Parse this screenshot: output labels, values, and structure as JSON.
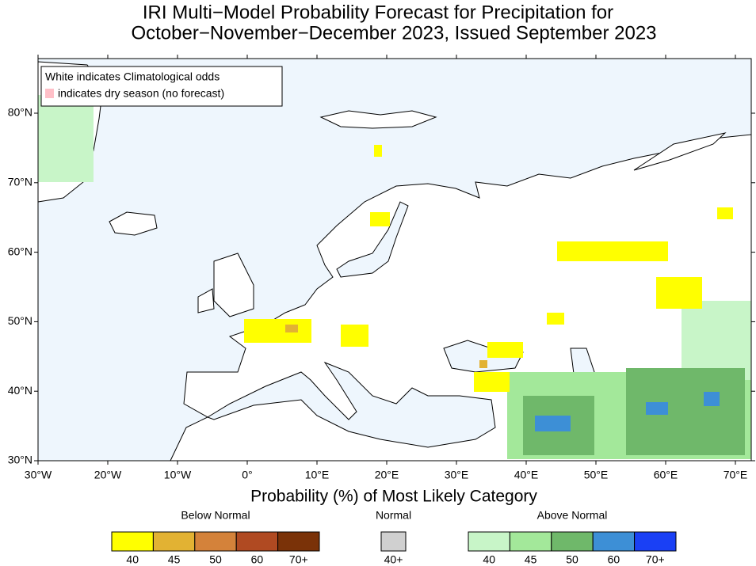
{
  "title": [
    "IRI Multi−Model Probability Forecast for Precipitation for",
    "October−November−December 2023, Issued September 2023"
  ],
  "notice": {
    "climatology": "White indicates Climatological odds",
    "dry_season": "indicates dry season (no forecast)",
    "dry_color": "#ffc0c8"
  },
  "map": {
    "x_labels": [
      "30°W",
      "20°W",
      "10°W",
      "0°",
      "10°E",
      "20°E",
      "30°E",
      "40°E",
      "50°E",
      "60°E",
      "70°E"
    ],
    "y_labels": [
      "30°N",
      "40°N",
      "50°N",
      "60°N",
      "70°N",
      "80°N"
    ]
  },
  "colorbar": {
    "title": "Probability (%) of Most Likely Category",
    "groups": [
      {
        "name": "Below Normal",
        "colors": [
          "#ffff00",
          "#e2b233",
          "#d4823a",
          "#b04a22",
          "#7a3208"
        ],
        "labels": [
          "40",
          "45",
          "50",
          "60",
          "70+"
        ]
      },
      {
        "name": "Normal",
        "colors": [
          "#d0d0d0"
        ],
        "labels": [
          "40+"
        ]
      },
      {
        "name": "Above Normal",
        "colors": [
          "#c8f5c8",
          "#a3e89a",
          "#6fb86a",
          "#3d8fd6",
          "#1a40f5"
        ],
        "labels": [
          "40",
          "45",
          "50",
          "60",
          "70+"
        ]
      }
    ]
  }
}
